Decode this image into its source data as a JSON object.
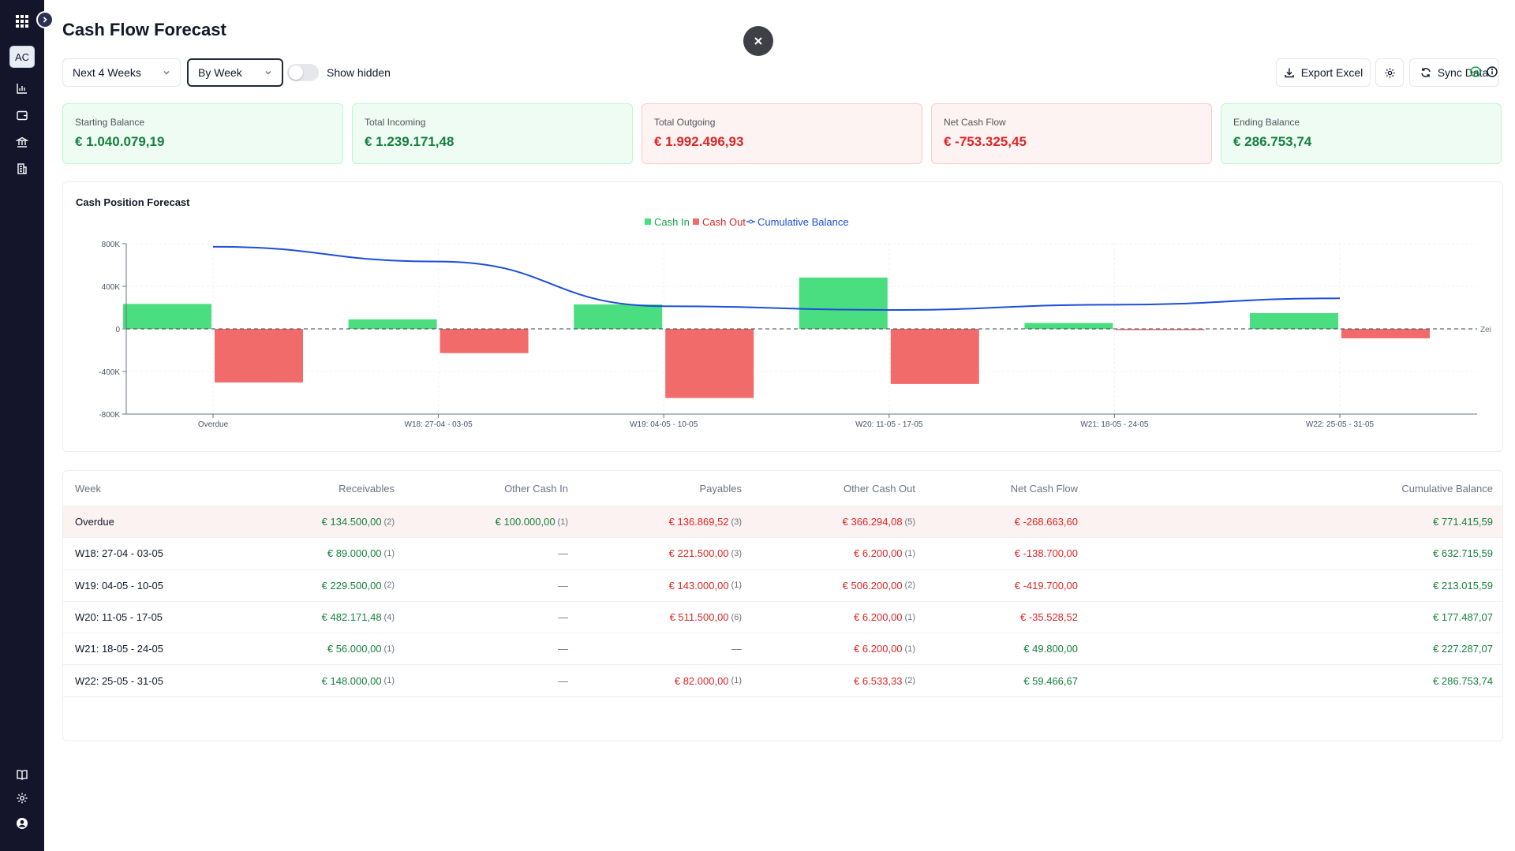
{
  "page": {
    "title": "Cash Flow Forecast",
    "period_select": "Next 4 Weeks",
    "group_select": "By Week",
    "show_hidden_label": "Show hidden",
    "export_label": "Export Excel",
    "sync_label": "Sync Data"
  },
  "sidebar": {
    "avatar": "AC"
  },
  "colors": {
    "positive": "#15803d",
    "negative": "#dc2626",
    "cash_in": "#4ade80",
    "cash_out": "#f26b6b",
    "balance_line": "#1d4ed8",
    "sidebar_bg": "#14142b"
  },
  "icons": [
    "apps-grid-icon",
    "chevron-right-icon",
    "bar-chart-icon",
    "wallet-icon",
    "bank-icon",
    "buildings-icon",
    "book-icon",
    "gear-icon",
    "user-circle-icon",
    "close-icon",
    "download-icon",
    "refresh-icon",
    "check-circle-icon",
    "info-icon"
  ],
  "cards": [
    {
      "label": "Starting Balance",
      "value": "€ 1.040.079,19",
      "tone": "pos"
    },
    {
      "label": "Total Incoming",
      "value": "€ 1.239.171,48",
      "tone": "pos"
    },
    {
      "label": "Total Outgoing",
      "value": "€ 1.992.496,93",
      "tone": "neg"
    },
    {
      "label": "Net Cash Flow",
      "value": "€ -753.325,45",
      "tone": "neg"
    },
    {
      "label": "Ending Balance",
      "value": "€ 286.753,74",
      "tone": "pos"
    }
  ],
  "chart_data": {
    "type": "bar",
    "title": "Cash Position Forecast",
    "categories": [
      "Overdue",
      "W18: 27-04 - 03-05",
      "W19: 04-05 - 10-05",
      "W20: 11-05 - 17-05",
      "W21: 18-05 - 24-05",
      "W22: 25-05 - 31-05"
    ],
    "series": [
      {
        "name": "Cash In",
        "type": "bar",
        "values": [
          234500,
          89000,
          229500,
          482171.48,
          56000,
          148000
        ]
      },
      {
        "name": "Cash Out",
        "type": "bar",
        "values": [
          -503163.6,
          -227700,
          -649200,
          -517700,
          -6200,
          -88533.33
        ]
      },
      {
        "name": "Cumulative Balance",
        "type": "line",
        "values": [
          771415.59,
          632715.59,
          213015.59,
          177487.07,
          227287.07,
          286753.74
        ]
      }
    ],
    "y_ticks": [
      "800K",
      "400K",
      "0",
      "-400K",
      "-800K"
    ],
    "ylim": [
      -800000,
      800000
    ],
    "reference_line_label": "Zei",
    "legend": "top-center",
    "grid": true
  },
  "table": {
    "headers": [
      "Week",
      "Receivables",
      "Other Cash In",
      "Payables",
      "Other Cash Out",
      "Net Cash Flow",
      "Cumulative Balance"
    ],
    "rows": [
      {
        "week": "Overdue",
        "receivables": "€ 134.500,00",
        "receivables_count": "(2)",
        "other_in": "€ 100.000,00",
        "other_in_count": "(1)",
        "payables": "€ 136.869,52",
        "payables_count": "(3)",
        "other_out": "€ 366.294,08",
        "other_out_count": "(5)",
        "net": "€ -268.663,60",
        "net_tone": "neg",
        "cumulative": "€ 771.415,59"
      },
      {
        "week": "W18: 27-04 - 03-05",
        "receivables": "€ 89.000,00",
        "receivables_count": "(1)",
        "other_in": "—",
        "other_in_count": "",
        "payables": "€ 221.500,00",
        "payables_count": "(3)",
        "other_out": "€ 6.200,00",
        "other_out_count": "(1)",
        "net": "€ -138.700,00",
        "net_tone": "neg",
        "cumulative": "€ 632.715,59"
      },
      {
        "week": "W19: 04-05 - 10-05",
        "receivables": "€ 229.500,00",
        "receivables_count": "(2)",
        "other_in": "—",
        "other_in_count": "",
        "payables": "€ 143.000,00",
        "payables_count": "(1)",
        "other_out": "€ 506.200,00",
        "other_out_count": "(2)",
        "net": "€ -419.700,00",
        "net_tone": "neg",
        "cumulative": "€ 213.015,59"
      },
      {
        "week": "W20: 11-05 - 17-05",
        "receivables": "€ 482.171,48",
        "receivables_count": "(4)",
        "other_in": "—",
        "other_in_count": "",
        "payables": "€ 511.500,00",
        "payables_count": "(6)",
        "other_out": "€ 6.200,00",
        "other_out_count": "(1)",
        "net": "€ -35.528,52",
        "net_tone": "neg",
        "cumulative": "€ 177.487,07"
      },
      {
        "week": "W21: 18-05 - 24-05",
        "receivables": "€ 56.000,00",
        "receivables_count": "(1)",
        "other_in": "—",
        "other_in_count": "",
        "payables": "—",
        "payables_count": "",
        "other_out": "€ 6.200,00",
        "other_out_count": "(1)",
        "net": "€ 49.800,00",
        "net_tone": "pos",
        "cumulative": "€ 227.287,07"
      },
      {
        "week": "W22: 25-05 - 31-05",
        "receivables": "€ 148.000,00",
        "receivables_count": "(1)",
        "other_in": "—",
        "other_in_count": "",
        "payables": "€ 82.000,00",
        "payables_count": "(1)",
        "other_out": "€ 6.533,33",
        "other_out_count": "(2)",
        "net": "€ 59.466,67",
        "net_tone": "pos",
        "cumulative": "€ 286.753,74"
      }
    ]
  }
}
